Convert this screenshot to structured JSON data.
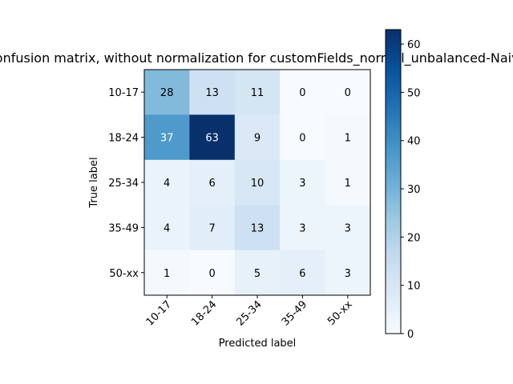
{
  "chart_data": {
    "type": "heatmap",
    "title": "Confusion matrix, without normalization for customFields_normal_unbalanced-Naive",
    "xlabel": "Predicted label",
    "ylabel": "True label",
    "x_categories": [
      "10-17",
      "18-24",
      "25-34",
      "35-49",
      "50-xx"
    ],
    "y_categories": [
      "10-17",
      "18-24",
      "25-34",
      "35-49",
      "50-xx"
    ],
    "matrix": [
      [
        28,
        13,
        11,
        0,
        0
      ],
      [
        37,
        63,
        9,
        0,
        1
      ],
      [
        4,
        6,
        10,
        3,
        1
      ],
      [
        4,
        7,
        13,
        3,
        3
      ],
      [
        1,
        0,
        5,
        6,
        3
      ]
    ],
    "colormap": "Blues",
    "colorbar": {
      "min": 0,
      "max": 63,
      "ticks": [
        0,
        10,
        20,
        30,
        40,
        50,
        60
      ]
    },
    "grid": false
  }
}
